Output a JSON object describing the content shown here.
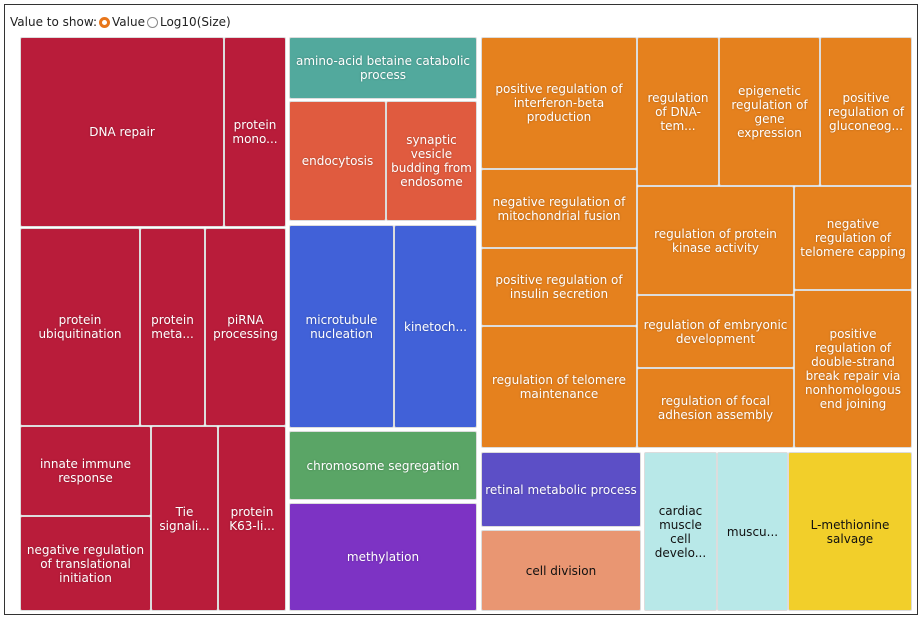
{
  "controls": {
    "label": "Value to show:",
    "options": [
      {
        "label": "Value",
        "checked": true
      },
      {
        "label": "Log10(Size)",
        "checked": false
      }
    ]
  },
  "chart_data": {
    "type": "treemap",
    "groups": [
      {
        "color": "#b91c3a",
        "items": [
          "DNA repair",
          "protein mono...",
          "protein ubiquitination",
          "protein meta...",
          "piRNA processing",
          "innate immune response",
          "negative regulation of translational initiation",
          "Tie signali...",
          "protein K63-li..."
        ]
      },
      {
        "color": "#52a99d",
        "items": [
          "amino-acid betaine catabolic process"
        ]
      },
      {
        "color": "#e05b3f",
        "items": [
          "endocytosis",
          "synaptic vesicle budding from endosome"
        ]
      },
      {
        "color": "#4161d8",
        "items": [
          "microtubule nucleation",
          "kinetoch..."
        ]
      },
      {
        "color": "#5aa566",
        "items": [
          "chromosome segregation"
        ]
      },
      {
        "color": "#7d33c4",
        "items": [
          "methylation"
        ]
      },
      {
        "color": "#e5811e",
        "items": [
          "positive regulation of interferon-beta production",
          "regulation of DNA-tem...",
          "epigenetic regulation of gene expression",
          "positive regulation of gluconeog...",
          "negative regulation of mitochondrial fusion",
          "regulation of protein kinase activity",
          "negative regulation of telomere capping",
          "positive regulation of insulin secretion",
          "regulation of embryonic development",
          "positive regulation of double-strand break repair via nonhomologous end joining",
          "regulation of telomere maintenance",
          "regulation of focal adhesion assembly"
        ]
      },
      {
        "color": "#5c4fc6",
        "items": [
          "retinal metabolic process"
        ]
      },
      {
        "color": "#e99672",
        "items": [
          "cell division"
        ]
      },
      {
        "color": "#b8e8e8",
        "items": [
          "cardiac muscle cell develo...",
          "muscu..."
        ]
      },
      {
        "color": "#f2cf2a",
        "items": [
          "L-methionine salvage"
        ]
      }
    ]
  }
}
